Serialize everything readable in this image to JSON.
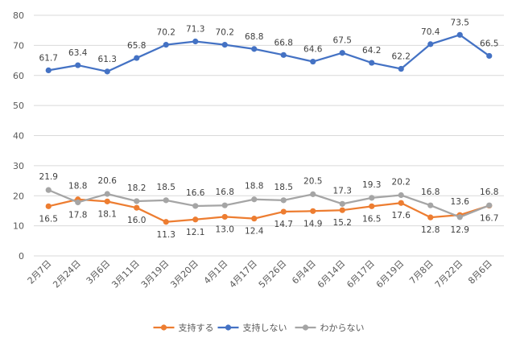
{
  "chart_data": {
    "type": "line",
    "categories": [
      "2月7日",
      "2月24日",
      "3月6日",
      "3月11日",
      "3月19日",
      "3月20日",
      "4月1日",
      "4月17日",
      "5月26日",
      "6月4日",
      "6月14日",
      "6月17日",
      "6月19日",
      "7月8日",
      "7月22日",
      "8月6日"
    ],
    "series": [
      {
        "name": "支持する",
        "color": "#ed7d31",
        "values": [
          16.5,
          18.8,
          18.1,
          16.0,
          11.3,
          12.1,
          13.0,
          12.4,
          14.7,
          14.9,
          15.2,
          16.5,
          17.6,
          12.8,
          13.6,
          16.7
        ]
      },
      {
        "name": "支持しない",
        "color": "#4472c4",
        "values": [
          61.7,
          63.4,
          61.3,
          65.8,
          70.2,
          71.3,
          70.2,
          68.8,
          66.8,
          64.6,
          67.5,
          64.2,
          62.2,
          70.4,
          73.5,
          66.5
        ]
      },
      {
        "name": "わからない",
        "color": "#a5a5a5",
        "values": [
          21.9,
          17.8,
          20.6,
          18.2,
          18.5,
          16.6,
          16.8,
          18.8,
          18.5,
          20.5,
          17.3,
          19.3,
          20.2,
          16.8,
          12.9,
          16.8
        ]
      }
    ],
    "ylim": [
      0,
      80
    ],
    "yticks": [
      0,
      10,
      20,
      30,
      40,
      50,
      60,
      70,
      80
    ],
    "grid": true,
    "legend_position": "bottom",
    "title": "",
    "xlabel": "",
    "ylabel": ""
  }
}
